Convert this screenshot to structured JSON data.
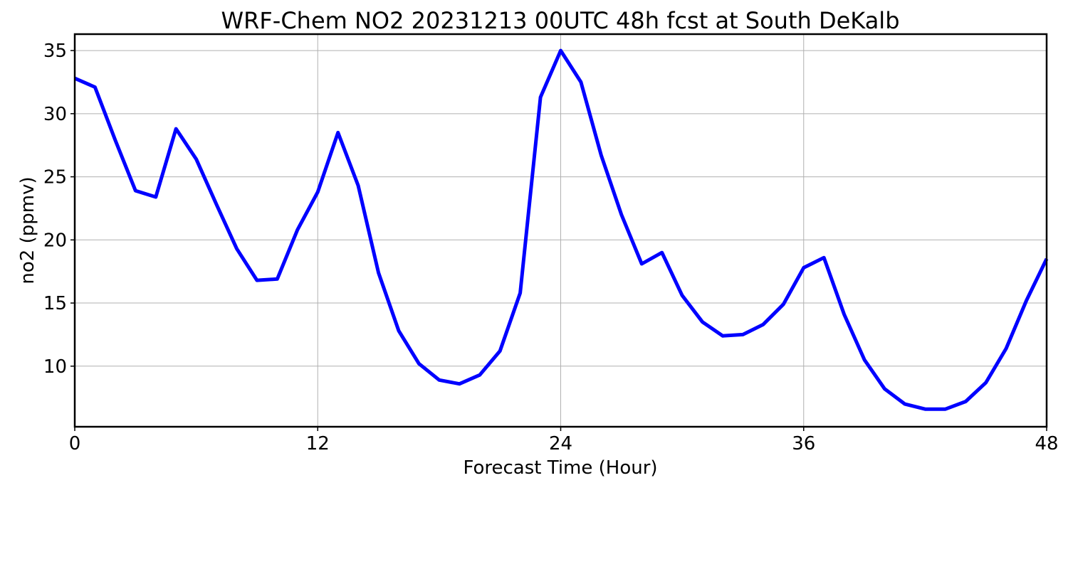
{
  "chart_data": {
    "type": "line",
    "title": "WRF-Chem NO2  20231213 00UTC 48h fcst at South DeKalb",
    "xlabel": "Forecast Time (Hour)",
    "ylabel": "no2  (ppmv)",
    "xlim": [
      0,
      48
    ],
    "ylim": [
      5.2,
      36.3
    ],
    "x_ticks": [
      0,
      12,
      24,
      36,
      48
    ],
    "y_ticks": [
      10,
      15,
      20,
      25,
      30,
      35
    ],
    "grid": true,
    "series": [
      {
        "color": "#0000ff",
        "x": [
          0,
          1,
          2,
          3,
          4,
          5,
          6,
          7,
          8,
          9,
          10,
          11,
          12,
          13,
          14,
          15,
          16,
          17,
          18,
          19,
          20,
          21,
          22,
          23,
          24,
          25,
          26,
          27,
          28,
          29,
          30,
          31,
          32,
          33,
          34,
          35,
          36,
          37,
          38,
          39,
          40,
          41,
          42,
          43,
          44,
          45,
          46,
          47,
          48
        ],
        "values": [
          32.8,
          32.1,
          27.9,
          23.9,
          23.4,
          28.8,
          26.4,
          22.8,
          19.3,
          16.8,
          16.9,
          20.8,
          23.8,
          28.5,
          24.3,
          17.4,
          12.8,
          10.2,
          8.9,
          8.6,
          9.3,
          11.2,
          15.8,
          31.3,
          35.0,
          32.5,
          26.7,
          22.0,
          18.1,
          19.0,
          15.6,
          13.5,
          12.4,
          12.5,
          13.3,
          14.9,
          17.8,
          18.6,
          14.1,
          10.5,
          8.2,
          7.0,
          6.6,
          6.6,
          7.2,
          8.7,
          11.4,
          15.2,
          18.5
        ]
      }
    ]
  }
}
